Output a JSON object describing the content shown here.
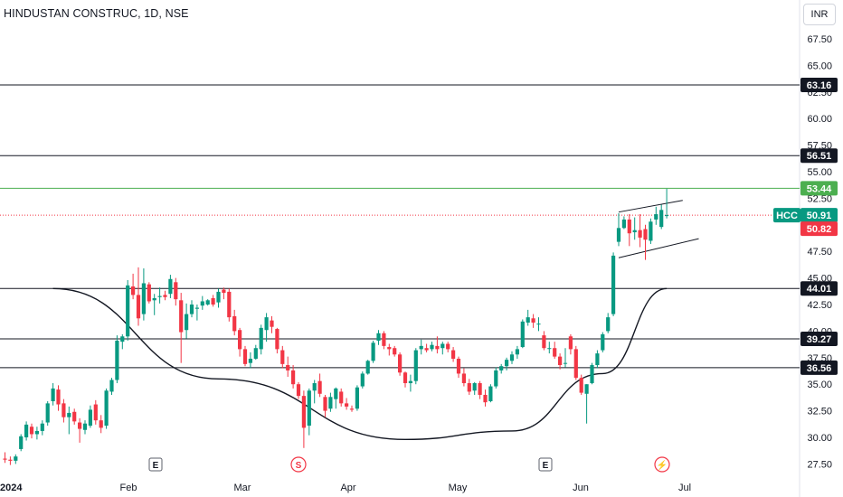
{
  "header": {
    "symbol_title": "HINDUSTAN CONSTRUC, 1D, NSE",
    "currency": "INR"
  },
  "chart_data": {
    "type": "candlestick",
    "y_ticks": [
      "67.50",
      "65.00",
      "62.50",
      "60.00",
      "57.50",
      "55.00",
      "52.50",
      "50.00",
      "47.50",
      "45.00",
      "42.50",
      "40.00",
      "37.50",
      "35.00",
      "32.50",
      "30.00",
      "27.50"
    ],
    "x_ticks": [
      "2024",
      "Feb",
      "Mar",
      "Apr",
      "May",
      "Jun",
      "Jul"
    ],
    "ylim": [
      26.4,
      70.4
    ],
    "levels": [
      {
        "name": "resistance-63",
        "value": 63.16,
        "label": "63.16",
        "color": "#131722",
        "style": "solid"
      },
      {
        "name": "resistance-56",
        "value": 56.51,
        "label": "56.51",
        "color": "#131722",
        "style": "solid"
      },
      {
        "name": "high-53",
        "value": 53.44,
        "label": "53.44",
        "color": "#4caf50",
        "style": "solid"
      },
      {
        "name": "support-44",
        "value": 44.01,
        "label": "44.01",
        "color": "#131722",
        "style": "solid"
      },
      {
        "name": "support-39",
        "value": 39.27,
        "label": "39.27",
        "color": "#131722",
        "style": "solid"
      },
      {
        "name": "support-36",
        "value": 36.56,
        "label": "36.56",
        "color": "#131722",
        "style": "solid"
      }
    ],
    "last_price": {
      "ticker": "HCC",
      "value": 50.91,
      "label": "50.91",
      "color": "#089981"
    },
    "prev_price": {
      "value": 50.82,
      "label": "50.82",
      "color": "#f23645"
    },
    "events": [
      {
        "name": "earnings-feb",
        "letter": "E",
        "kind": "earnings"
      },
      {
        "name": "split-mar",
        "letter": "S",
        "kind": "split"
      },
      {
        "name": "earnings-may",
        "letter": "E",
        "kind": "earnings"
      },
      {
        "name": "flash-jun",
        "letter": "⚡",
        "kind": "flash"
      }
    ],
    "candles": [
      [
        28.0,
        28.6,
        27.6,
        27.9
      ],
      [
        27.9,
        28.2,
        27.4,
        27.8
      ],
      [
        27.8,
        28.4,
        27.5,
        28.2
      ],
      [
        28.9,
        30.3,
        28.7,
        30.1
      ],
      [
        30.0,
        31.5,
        29.7,
        31.2
      ],
      [
        31.0,
        31.3,
        29.9,
        30.3
      ],
      [
        30.3,
        31.0,
        29.8,
        30.6
      ],
      [
        30.6,
        31.6,
        30.2,
        31.3
      ],
      [
        31.4,
        33.4,
        31.1,
        33.2
      ],
      [
        33.4,
        35.1,
        33.0,
        34.6
      ],
      [
        34.5,
        34.9,
        32.5,
        33.1
      ],
      [
        33.2,
        33.6,
        31.4,
        31.9
      ],
      [
        31.9,
        32.9,
        30.3,
        32.3
      ],
      [
        32.4,
        32.7,
        31.2,
        31.5
      ],
      [
        31.4,
        31.8,
        29.5,
        30.8
      ],
      [
        30.7,
        31.6,
        30.3,
        31.3
      ],
      [
        31.1,
        33.0,
        30.9,
        32.6
      ],
      [
        33.1,
        33.5,
        31.2,
        31.6
      ],
      [
        31.6,
        32.1,
        30.4,
        30.9
      ],
      [
        31.1,
        34.6,
        30.8,
        34.4
      ],
      [
        34.3,
        35.6,
        34.0,
        35.4
      ],
      [
        35.4,
        39.6,
        35.1,
        39.1
      ],
      [
        39.0,
        39.7,
        38.3,
        39.5
      ],
      [
        39.5,
        44.8,
        39.1,
        44.3
      ],
      [
        44.2,
        45.4,
        43.0,
        43.4
      ],
      [
        43.4,
        46.0,
        40.5,
        41.2
      ],
      [
        41.6,
        45.9,
        41.0,
        44.5
      ],
      [
        44.4,
        44.6,
        42.6,
        42.8
      ],
      [
        42.9,
        43.5,
        41.5,
        43.1
      ],
      [
        43.2,
        44.1,
        42.6,
        43.3
      ],
      [
        43.4,
        43.8,
        42.9,
        43.2
      ],
      [
        43.5,
        45.3,
        43.1,
        44.9
      ],
      [
        44.6,
        45.0,
        42.4,
        43.0
      ],
      [
        42.9,
        43.6,
        37.0,
        39.9
      ],
      [
        40.1,
        42.6,
        39.3,
        41.6
      ],
      [
        41.6,
        42.9,
        41.3,
        42.5
      ],
      [
        42.1,
        42.5,
        41.0,
        42.2
      ],
      [
        42.4,
        43.3,
        42.0,
        42.8
      ],
      [
        42.5,
        43.0,
        42.4,
        42.9
      ],
      [
        43.1,
        43.4,
        42.3,
        42.5
      ],
      [
        42.7,
        44.0,
        42.2,
        43.7
      ],
      [
        43.9,
        44.1,
        43.0,
        43.6
      ],
      [
        43.7,
        44.0,
        40.9,
        41.3
      ],
      [
        41.4,
        42.0,
        39.6,
        40.0
      ],
      [
        40.1,
        40.3,
        37.6,
        38.3
      ],
      [
        38.3,
        38.6,
        36.7,
        36.9
      ],
      [
        37.0,
        38.0,
        36.5,
        37.4
      ],
      [
        37.4,
        38.7,
        37.3,
        38.4
      ],
      [
        38.3,
        40.6,
        37.8,
        40.3
      ],
      [
        40.1,
        41.7,
        39.0,
        41.3
      ],
      [
        41.0,
        41.4,
        39.8,
        40.4
      ],
      [
        40.2,
        40.3,
        37.9,
        38.3
      ],
      [
        38.2,
        38.6,
        36.5,
        36.9
      ],
      [
        36.8,
        37.6,
        35.7,
        36.3
      ],
      [
        36.3,
        36.8,
        34.6,
        35.0
      ],
      [
        35.0,
        35.2,
        33.6,
        33.9
      ],
      [
        33.9,
        34.4,
        29.0,
        30.9
      ],
      [
        31.1,
        34.6,
        30.2,
        34.4
      ],
      [
        34.4,
        35.4,
        33.2,
        35.1
      ],
      [
        35.3,
        36.0,
        33.8,
        34.1
      ],
      [
        33.8,
        34.0,
        31.9,
        32.5
      ],
      [
        32.7,
        34.2,
        32.4,
        33.8
      ],
      [
        33.6,
        34.7,
        32.7,
        34.6
      ],
      [
        34.3,
        34.6,
        32.9,
        33.2
      ],
      [
        33.2,
        33.7,
        32.6,
        32.9
      ],
      [
        32.7,
        33.0,
        32.4,
        32.6
      ],
      [
        32.7,
        34.9,
        32.5,
        34.7
      ],
      [
        34.8,
        36.2,
        34.6,
        36.0
      ],
      [
        36.0,
        37.3,
        35.9,
        37.2
      ],
      [
        37.2,
        39.1,
        37.0,
        38.9
      ],
      [
        39.1,
        40.1,
        38.7,
        39.8
      ],
      [
        39.8,
        40.0,
        38.3,
        38.6
      ],
      [
        38.5,
        38.8,
        37.7,
        38.3
      ],
      [
        38.4,
        38.6,
        37.6,
        37.8
      ],
      [
        37.8,
        38.0,
        35.8,
        36.1
      ],
      [
        36.1,
        36.2,
        34.7,
        35.1
      ],
      [
        35.1,
        35.9,
        34.3,
        35.3
      ],
      [
        35.3,
        38.4,
        35.0,
        38.2
      ],
      [
        38.3,
        39.2,
        37.8,
        38.6
      ],
      [
        38.4,
        38.8,
        38.0,
        38.2
      ],
      [
        38.3,
        39.0,
        38.1,
        38.7
      ],
      [
        38.6,
        39.5,
        37.9,
        38.3
      ],
      [
        38.4,
        39.0,
        37.8,
        38.8
      ],
      [
        38.8,
        39.0,
        38.0,
        38.3
      ],
      [
        38.2,
        38.5,
        37.1,
        37.4
      ],
      [
        37.4,
        37.6,
        35.6,
        36.0
      ],
      [
        36.0,
        36.5,
        34.8,
        35.1
      ],
      [
        35.1,
        35.5,
        34.0,
        34.3
      ],
      [
        34.4,
        35.2,
        34.0,
        35.1
      ],
      [
        35.1,
        35.3,
        33.6,
        34.0
      ],
      [
        34.0,
        34.5,
        32.9,
        33.3
      ],
      [
        33.4,
        35.0,
        33.3,
        34.8
      ],
      [
        34.8,
        36.6,
        34.6,
        36.3
      ],
      [
        36.3,
        36.9,
        36.0,
        36.7
      ],
      [
        36.7,
        37.5,
        36.3,
        37.3
      ],
      [
        37.2,
        38.1,
        36.9,
        37.8
      ],
      [
        37.8,
        38.6,
        37.4,
        38.3
      ],
      [
        38.5,
        41.1,
        38.4,
        40.9
      ],
      [
        40.8,
        42.0,
        40.5,
        41.3
      ],
      [
        41.2,
        41.6,
        40.3,
        40.8
      ],
      [
        40.7,
        41.3,
        40.0,
        40.7
      ],
      [
        39.6,
        40.0,
        38.2,
        38.4
      ],
      [
        38.4,
        39.0,
        37.9,
        38.4
      ],
      [
        38.4,
        39.0,
        37.4,
        37.6
      ],
      [
        37.6,
        37.9,
        36.4,
        36.8
      ],
      [
        37.0,
        38.4,
        36.6,
        37.0
      ],
      [
        39.5,
        39.7,
        37.8,
        38.3
      ],
      [
        38.3,
        38.6,
        35.4,
        35.6
      ],
      [
        35.6,
        35.9,
        34.0,
        34.2
      ],
      [
        34.1,
        35.0,
        31.3,
        35.0
      ],
      [
        35.1,
        37.0,
        35.0,
        36.8
      ],
      [
        36.8,
        38.2,
        36.5,
        37.9
      ],
      [
        38.2,
        39.9,
        38.0,
        39.7
      ],
      [
        40.0,
        41.7,
        39.8,
        41.3
      ],
      [
        41.6,
        47.4,
        41.4,
        47.1
      ],
      [
        48.4,
        51.1,
        48.0,
        49.7
      ],
      [
        49.7,
        50.8,
        49.6,
        50.5
      ],
      [
        50.5,
        51.0,
        48.0,
        49.2
      ],
      [
        49.3,
        50.7,
        48.6,
        49.5
      ],
      [
        49.5,
        51.0,
        47.9,
        48.8
      ],
      [
        49.6,
        50.0,
        46.7,
        48.6
      ],
      [
        48.5,
        50.6,
        48.2,
        50.3
      ],
      [
        50.5,
        51.7,
        50.0,
        51.0
      ],
      [
        49.8,
        51.9,
        49.6,
        51.4
      ],
      [
        50.9,
        53.4,
        50.6,
        50.91
      ]
    ]
  }
}
